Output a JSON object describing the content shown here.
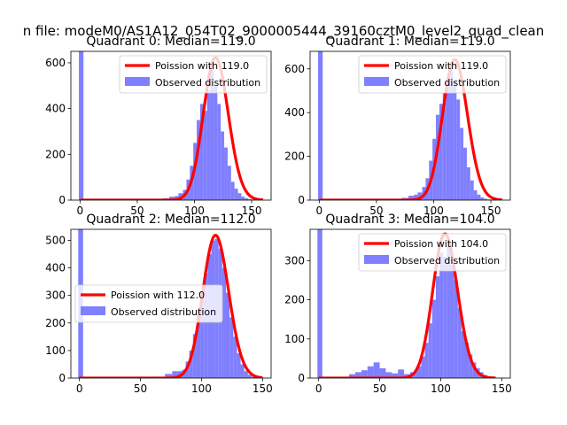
{
  "figure": {
    "title": "n file: modeM0/AS1A12_054T02_9000005444_39160cztM0_level2_quad_clean"
  },
  "style": {
    "poisson_color": "#ff0000",
    "observed_color": "#7f7fff",
    "axes_color": "#000000",
    "legend_edge": "#cccccc"
  },
  "chart_data": [
    {
      "type": "bar",
      "title": "Quadrant 0: Median=119.0",
      "xlim": [
        -8,
        167
      ],
      "ylim": [
        0,
        650
      ],
      "xticks": [
        0,
        50,
        100,
        150
      ],
      "yticks": [
        0,
        200,
        400,
        600
      ],
      "legend_position": "top-right",
      "legend": [
        "Poission with 119.0",
        "Observed distribution"
      ],
      "poisson": {
        "name": "Poission with 119.0",
        "lambda": 119.0,
        "peak": 622,
        "x_range": [
          0,
          160
        ]
      },
      "observed": {
        "name": "Observed distribution",
        "bin_edges": [
          -1,
          3,
          72,
          78,
          83,
          86,
          90,
          93,
          96,
          99,
          102,
          105,
          108,
          111,
          114,
          117,
          120,
          123,
          126,
          129,
          132,
          135,
          138,
          141,
          144,
          147,
          150,
          153,
          156
        ],
        "counts": [
          650,
          0,
          8,
          15,
          18,
          30,
          45,
          90,
          150,
          250,
          350,
          420,
          390,
          480,
          580,
          500,
          420,
          300,
          230,
          150,
          80,
          50,
          30,
          15,
          8,
          4,
          2,
          1
        ]
      }
    },
    {
      "type": "bar",
      "title": "Quadrant 1: Median=119.0",
      "xlim": [
        -8,
        167
      ],
      "ylim": [
        0,
        680
      ],
      "xticks": [
        0,
        50,
        100,
        150
      ],
      "yticks": [
        0,
        200,
        400,
        600
      ],
      "legend_position": "top-right",
      "legend": [
        "Poission with 119.0",
        "Observed distribution"
      ],
      "poisson": {
        "name": "Poission with 119.0",
        "lambda": 119.0,
        "peak": 642,
        "x_range": [
          0,
          160
        ]
      },
      "observed": {
        "name": "Observed distribution",
        "bin_edges": [
          -1,
          3,
          72,
          78,
          83,
          86,
          90,
          93,
          96,
          99,
          102,
          105,
          108,
          111,
          114,
          117,
          120,
          123,
          126,
          129,
          132,
          135,
          138,
          141,
          144,
          147,
          150,
          153,
          156
        ],
        "counts": [
          680,
          0,
          10,
          20,
          25,
          35,
          60,
          100,
          180,
          280,
          390,
          440,
          490,
          520,
          600,
          540,
          460,
          330,
          240,
          150,
          90,
          45,
          25,
          12,
          6,
          3,
          1,
          1
        ]
      }
    },
    {
      "type": "bar",
      "title": "Quadrant 2: Median=112.0",
      "xlim": [
        -7,
        157
      ],
      "ylim": [
        0,
        540
      ],
      "xticks": [
        0,
        50,
        100,
        150
      ],
      "yticks": [
        0,
        100,
        200,
        300,
        400,
        500
      ],
      "legend_position": "center-left",
      "legend": [
        "Poission with 112.0",
        "Observed distribution"
      ],
      "poisson": {
        "name": "Poission with 112.0",
        "lambda": 112.0,
        "peak": 518,
        "x_range": [
          0,
          150
        ]
      },
      "observed": {
        "name": "Observed distribution",
        "bin_edges": [
          -1,
          3,
          60,
          70,
          76,
          80,
          84,
          87,
          90,
          93,
          96,
          99,
          102,
          105,
          108,
          111,
          114,
          117,
          120,
          123,
          126,
          129,
          132,
          135,
          138,
          141,
          145
        ],
        "counts": [
          540,
          0,
          5,
          15,
          25,
          25,
          30,
          60,
          100,
          160,
          230,
          300,
          380,
          450,
          500,
          505,
          470,
          400,
          310,
          220,
          150,
          90,
          50,
          25,
          12,
          5
        ]
      }
    },
    {
      "type": "bar",
      "title": "Quadrant 3: Median=104.0",
      "xlim": [
        -7,
        157
      ],
      "ylim": [
        0,
        380
      ],
      "xticks": [
        0,
        50,
        100,
        150
      ],
      "yticks": [
        0,
        100,
        200,
        300
      ],
      "legend_position": "top-right",
      "legend": [
        "Poission with 104.0",
        "Observed distribution"
      ],
      "poisson": {
        "name": "Poission with 104.0",
        "lambda": 104.0,
        "peak": 368,
        "x_range": [
          0,
          145
        ]
      },
      "observed": {
        "name": "Observed distribution",
        "bin_edges": [
          -1,
          3,
          25,
          30,
          35,
          40,
          45,
          50,
          55,
          60,
          65,
          70,
          75,
          80,
          84,
          87,
          90,
          93,
          96,
          99,
          102,
          105,
          108,
          111,
          114,
          117,
          120,
          123,
          126,
          129,
          132,
          135,
          138,
          141,
          144
        ],
        "counts": [
          380,
          0,
          10,
          15,
          20,
          30,
          40,
          25,
          15,
          12,
          22,
          10,
          15,
          30,
          55,
          90,
          140,
          200,
          260,
          320,
          310,
          340,
          290,
          250,
          180,
          120,
          90,
          60,
          40,
          25,
          15,
          8,
          4,
          2
        ]
      }
    }
  ]
}
